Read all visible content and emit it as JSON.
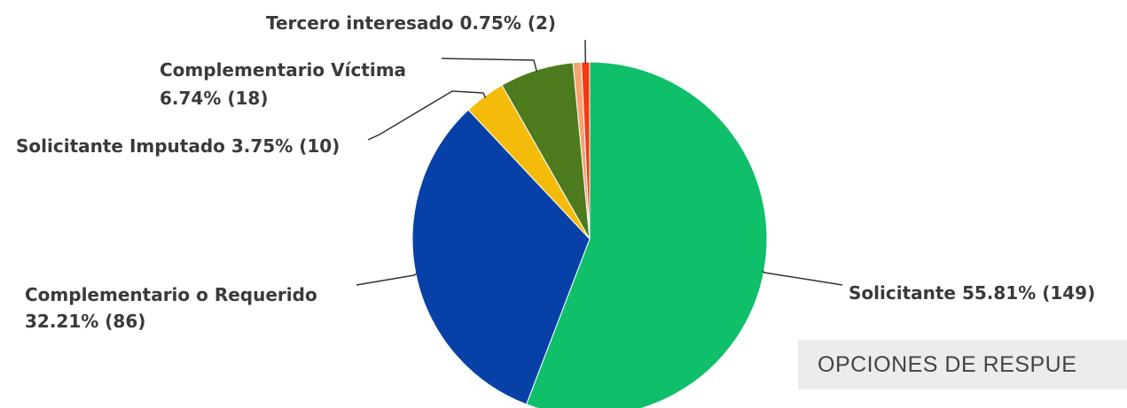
{
  "chart_data": {
    "type": "pie",
    "title": "",
    "start_angle_deg": 0,
    "direction": "clockwise",
    "slices": [
      {
        "name": "Solicitante",
        "percent": 55.81,
        "count": 149,
        "color": "#0fbf6a",
        "label": "Solicitante 55.81% (149)"
      },
      {
        "name": "Complementario o Requerido",
        "percent": 32.21,
        "count": 86,
        "color": "#0741a8",
        "label_lines": [
          "Complementario o Requerido",
          "32.21% (86)"
        ]
      },
      {
        "name": "Solicitante Imputado",
        "percent": 3.75,
        "count": 10,
        "color": "#f5bb0a",
        "label": "Solicitante Imputado 3.75% (10)"
      },
      {
        "name": "Complementario Víctima",
        "percent": 6.74,
        "count": 18,
        "color": "#4d7a1d",
        "label_lines": [
          "Complementario Víctima",
          "6.74% (18)"
        ]
      },
      {
        "name": "",
        "percent": 0.75,
        "count": 2,
        "color": "#f4a472",
        "label": ""
      },
      {
        "name": "Tercero interesado",
        "percent": 0.75,
        "count": 2,
        "color": "#f23a14",
        "label": "Tercero interesado 0.75% (2)"
      }
    ]
  },
  "options_banner": {
    "text": "OPCIONES DE RESPUE"
  }
}
